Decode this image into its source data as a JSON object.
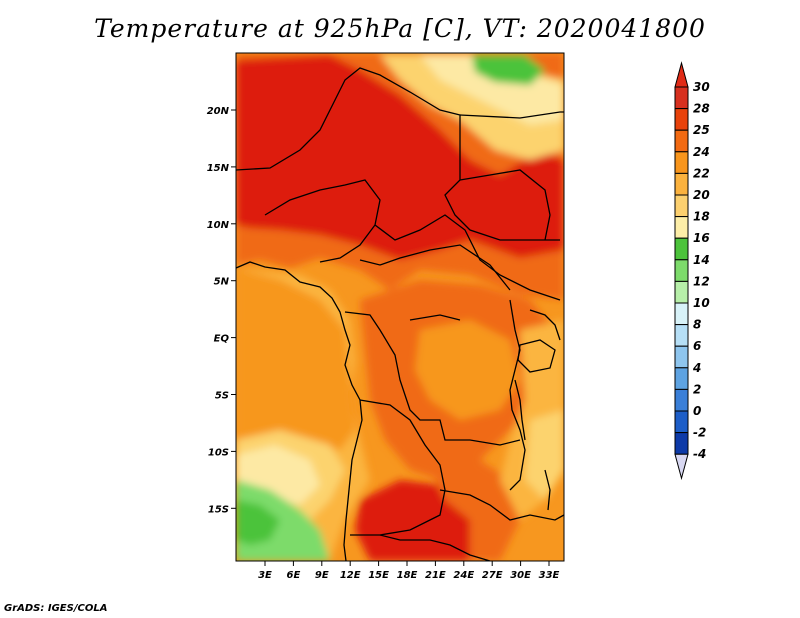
{
  "title": "Temperature at 925hPa [C], VT: 2020041800",
  "credit": "GrADS: IGES/COLA",
  "lat_labels": [
    "20N",
    "15N",
    "10N",
    "5N",
    "EQ",
    "5S",
    "10S",
    "15S"
  ],
  "lon_labels": [
    "3E",
    "6E",
    "9E",
    "12E",
    "15E",
    "18E",
    "21E",
    "24E",
    "27E",
    "30E",
    "33E"
  ],
  "colorbar": {
    "levels": [
      "30",
      "28",
      "25",
      "24",
      "22",
      "20",
      "18",
      "16",
      "14",
      "12",
      "10",
      "8",
      "6",
      "4",
      "2",
      "0",
      "-2",
      "-4"
    ],
    "colors": [
      "#d7301f",
      "#e8420b",
      "#f26a12",
      "#f8951c",
      "#fbb23e",
      "#fcd06f",
      "#fdeea8",
      "#4cc33b",
      "#7ddb6b",
      "#b7efa9",
      "#d8f2f8",
      "#b6dff6",
      "#8ec5ee",
      "#5ea3e2",
      "#3a7fd8",
      "#1d5ec8",
      "#0d3aa8",
      "#071a6e"
    ],
    "top_arrow_color": "#e02b17",
    "bottom_arrow_color": "#d8d8f2"
  },
  "map_colors": {
    "hot": "#dd1d09",
    "warm": "#f06a14",
    "orange": "#f7971f",
    "light_orange": "#fbb53f",
    "yellow": "#fcd36e",
    "pale": "#fde9a4",
    "green": "#7ddb6b",
    "bright_green": "#4cc33b"
  }
}
